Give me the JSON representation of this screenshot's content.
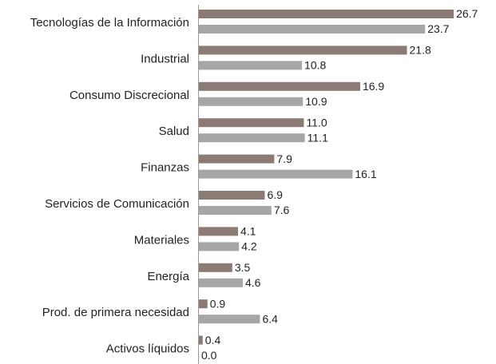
{
  "chart_data": {
    "type": "bar",
    "orientation": "horizontal",
    "categories": [
      "Tecnologías de la Información",
      "Industrial",
      "Consumo Discrecional",
      "Salud",
      "Finanzas",
      "Servicios de Comunicación",
      "Materiales",
      "Energía",
      "Prod. de primera necesidad",
      "Activos líquidos"
    ],
    "series": [
      {
        "color": "#8c7b74",
        "values": [
          26.7,
          21.8,
          16.9,
          11.0,
          7.9,
          6.9,
          4.1,
          3.5,
          0.9,
          0.4
        ],
        "value_labels": [
          "26.7",
          "21.8",
          "16.9",
          "11.0",
          "7.9",
          "6.9",
          "4.1",
          "3.5",
          "0.9",
          "0.4"
        ]
      },
      {
        "color": "#a6a6a6",
        "values": [
          23.7,
          10.8,
          10.9,
          11.1,
          16.1,
          7.6,
          4.2,
          4.6,
          6.4,
          0.0
        ],
        "value_labels": [
          "23.7",
          "10.8",
          "10.9",
          "11.1",
          "16.1",
          "7.6",
          "4.2",
          "4.6",
          "6.4",
          "0.0"
        ]
      }
    ]
  }
}
